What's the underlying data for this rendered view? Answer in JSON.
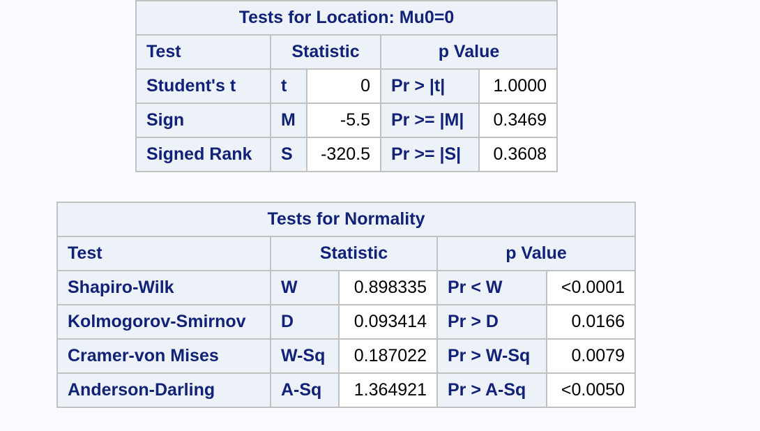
{
  "location_table": {
    "title": "Tests for Location: Mu0=0",
    "headers": {
      "test": "Test",
      "statistic": "Statistic",
      "p_value": "p Value"
    },
    "rows": [
      {
        "test": "Student's t",
        "stat_label": "t",
        "stat_value": "0",
        "p_label": "Pr > |t|",
        "p_value": "1.0000"
      },
      {
        "test": "Sign",
        "stat_label": "M",
        "stat_value": "-5.5",
        "p_label": "Pr >= |M|",
        "p_value": "0.3469"
      },
      {
        "test": "Signed Rank",
        "stat_label": "S",
        "stat_value": "-320.5",
        "p_label": "Pr >= |S|",
        "p_value": "0.3608"
      }
    ]
  },
  "normality_table": {
    "title": "Tests for Normality",
    "headers": {
      "test": "Test",
      "statistic": "Statistic",
      "p_value": "p Value"
    },
    "rows": [
      {
        "test": "Shapiro-Wilk",
        "stat_label": "W",
        "stat_value": "0.898335",
        "p_label": "Pr < W",
        "p_value": "<0.0001"
      },
      {
        "test": "Kolmogorov-Smirnov",
        "stat_label": "D",
        "stat_value": "0.093414",
        "p_label": "Pr > D",
        "p_value": "0.0166"
      },
      {
        "test": "Cramer-von Mises",
        "stat_label": "W-Sq",
        "stat_value": "0.187022",
        "p_label": "Pr > W-Sq",
        "p_value": "0.0079"
      },
      {
        "test": "Anderson-Darling",
        "stat_label": "A-Sq",
        "stat_value": "1.364921",
        "p_label": "Pr > A-Sq",
        "p_value": "<0.0050"
      }
    ]
  },
  "colors": {
    "header_text": "#112277",
    "header_bg": "#edf2f9",
    "value_bg": "#ffffff",
    "border": "#c1c1c1",
    "page_bg": "#fafbfe"
  }
}
